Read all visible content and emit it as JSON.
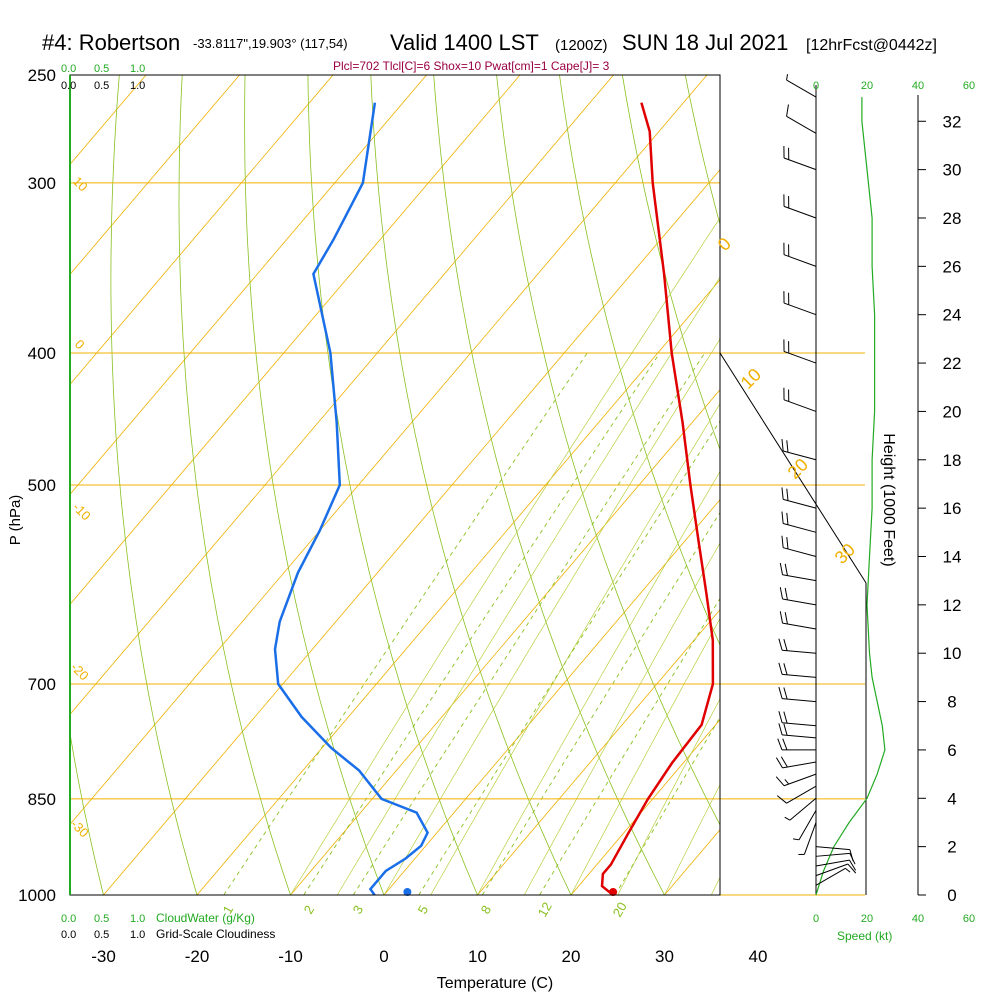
{
  "header": {
    "station": "#4: Robertson",
    "coords": "-33.8117\",19.903° (117,54)",
    "valid": "Valid 1400 LST",
    "zulu": "(1200Z)",
    "date": "SUN 18 Jul 2021",
    "forecast": "[12hrFcst@0442z]",
    "params": "Plcl=702 Tlcl[C]=6 Shox=10 Pwat[cm]=1 Cape[J]= 3"
  },
  "labels": {
    "y_left": "P (hPa)",
    "x_bottom": "Temperature (C)",
    "y_right": "Height (1000 Feet)",
    "speed": "Speed (kt)",
    "cloudwater": "CloudWater (g/Kg)",
    "cloudiness": "Grid-Scale Cloudiness"
  },
  "scale_marks": {
    "top_green": [
      "0.0",
      "0.5",
      "1.0"
    ],
    "top_black": [
      "0.0",
      "0.5",
      "1.0"
    ],
    "bottom_green": [
      "0.0",
      "0.5",
      "1.0"
    ],
    "bottom_black": [
      "0.0",
      "0.5",
      "1.0"
    ],
    "speed_top": [
      "0",
      "20",
      "40",
      "60"
    ],
    "speed_bottom": [
      "0",
      "20",
      "40",
      "60"
    ]
  },
  "isotherm_labels": [
    "10",
    "0",
    "-10",
    "-20",
    "-30"
  ],
  "mixing_ratio_labels": [
    "1",
    "2",
    "3",
    "5",
    "8",
    "12",
    "20"
  ],
  "theta_labels": [
    "0",
    "10",
    "20",
    "30"
  ],
  "colors": {
    "temperature": "#e00000",
    "dewpoint": "#1a6ee8",
    "isobar": "#f0b000",
    "isotherm": "#f0b000",
    "adiabat": "#8ac020",
    "mixing_ratio": "#8ac020",
    "wind": "#000000",
    "speed": "#22aa22",
    "params_text": "#990044",
    "scale_green": "#22aa22"
  },
  "chart_data": {
    "type": "skew-t",
    "title": "#4: Robertson",
    "xlabel": "Temperature (C)",
    "ylabel": "P (hPa)",
    "xlim": [
      -35,
      45
    ],
    "pressure_ticks": [
      250,
      300,
      400,
      500,
      700,
      850,
      1000
    ],
    "temp_ticks": [
      -30,
      -20,
      -10,
      0,
      10,
      20,
      30,
      40
    ],
    "height_ticks_kft": [
      0,
      2,
      4,
      6,
      8,
      10,
      12,
      14,
      16,
      18,
      20,
      22,
      24,
      26,
      28,
      30,
      32
    ],
    "temperature_profile": [
      {
        "p": 1000,
        "t": 24.5
      },
      {
        "p": 985,
        "t": 22.5
      },
      {
        "p": 965,
        "t": 21.5
      },
      {
        "p": 950,
        "t": 21.5
      },
      {
        "p": 900,
        "t": 20.5
      },
      {
        "p": 850,
        "t": 19.5
      },
      {
        "p": 800,
        "t": 18.8
      },
      {
        "p": 750,
        "t": 18.5
      },
      {
        "p": 700,
        "t": 16.0
      },
      {
        "p": 650,
        "t": 12.0
      },
      {
        "p": 600,
        "t": 7.0
      },
      {
        "p": 550,
        "t": 1.5
      },
      {
        "p": 500,
        "t": -4.5
      },
      {
        "p": 450,
        "t": -11.0
      },
      {
        "p": 400,
        "t": -18.5
      },
      {
        "p": 350,
        "t": -26.5
      },
      {
        "p": 300,
        "t": -36.0
      },
      {
        "p": 275,
        "t": -41.0
      },
      {
        "p": 262,
        "t": -44.5
      }
    ],
    "dewpoint_profile": [
      {
        "p": 1000,
        "td": -1.0
      },
      {
        "p": 990,
        "td": -2.0
      },
      {
        "p": 960,
        "td": -2.0
      },
      {
        "p": 940,
        "td": -1.0
      },
      {
        "p": 920,
        "td": -0.5
      },
      {
        "p": 900,
        "td": -1.0
      },
      {
        "p": 870,
        "td": -4.0
      },
      {
        "p": 850,
        "td": -9.0
      },
      {
        "p": 810,
        "td": -14.0
      },
      {
        "p": 780,
        "td": -19.0
      },
      {
        "p": 740,
        "td": -25.0
      },
      {
        "p": 700,
        "td": -30.5
      },
      {
        "p": 660,
        "td": -34.0
      },
      {
        "p": 630,
        "td": -36.0
      },
      {
        "p": 580,
        "td": -38.5
      },
      {
        "p": 540,
        "td": -40.0
      },
      {
        "p": 500,
        "td": -42.0
      },
      {
        "p": 450,
        "td": -48.0
      },
      {
        "p": 400,
        "td": -55.0
      },
      {
        "p": 350,
        "td": -64.0
      },
      {
        "p": 330,
        "td": -65.0
      },
      {
        "p": 300,
        "td": -67.0
      },
      {
        "p": 262,
        "td": -73.0
      }
    ],
    "surface_dewpoint_marker": {
      "p": 1000,
      "td": 2.5
    },
    "surface_temp_marker": {
      "p": 1000,
      "t": 24.5
    },
    "cloudwater_gkg": 0.0,
    "cloudiness": 0.0,
    "winds": [
      {
        "kft": 0.4,
        "spd": 5,
        "dir": 60
      },
      {
        "kft": 0.8,
        "spd": 10,
        "dir": 70
      },
      {
        "kft": 1.2,
        "spd": 10,
        "dir": 80
      },
      {
        "kft": 1.6,
        "spd": 10,
        "dir": 85
      },
      {
        "kft": 2.0,
        "spd": 10,
        "dir": 95
      },
      {
        "kft": 3.0,
        "spd": 5,
        "dir": 200
      },
      {
        "kft": 3.5,
        "spd": 5,
        "dir": 210
      },
      {
        "kft": 4.0,
        "spd": 8,
        "dir": 230
      },
      {
        "kft": 4.5,
        "spd": 10,
        "dir": 240
      },
      {
        "kft": 5.0,
        "spd": 15,
        "dir": 250
      },
      {
        "kft": 5.5,
        "spd": 20,
        "dir": 260
      },
      {
        "kft": 6.0,
        "spd": 22,
        "dir": 270
      },
      {
        "kft": 6.5,
        "spd": 22,
        "dir": 275
      },
      {
        "kft": 7.0,
        "spd": 20,
        "dir": 275
      },
      {
        "kft": 8.0,
        "spd": 20,
        "dir": 275
      },
      {
        "kft": 9.0,
        "spd": 20,
        "dir": 275
      },
      {
        "kft": 10.0,
        "spd": 20,
        "dir": 275
      },
      {
        "kft": 11.0,
        "spd": 20,
        "dir": 280
      },
      {
        "kft": 12.0,
        "spd": 20,
        "dir": 280
      },
      {
        "kft": 13.0,
        "spd": 20,
        "dir": 280
      },
      {
        "kft": 14.0,
        "spd": 20,
        "dir": 285
      },
      {
        "kft": 15.0,
        "spd": 20,
        "dir": 285
      },
      {
        "kft": 16.0,
        "spd": 20,
        "dir": 285
      },
      {
        "kft": 18.0,
        "spd": 20,
        "dir": 285
      },
      {
        "kft": 20.0,
        "spd": 20,
        "dir": 290
      },
      {
        "kft": 22.0,
        "spd": 20,
        "dir": 290
      },
      {
        "kft": 24.0,
        "spd": 20,
        "dir": 290
      },
      {
        "kft": 26.0,
        "spd": 20,
        "dir": 290
      },
      {
        "kft": 28.0,
        "spd": 20,
        "dir": 290
      },
      {
        "kft": 30.0,
        "spd": 20,
        "dir": 290
      },
      {
        "kft": 31.5,
        "spd": 10,
        "dir": 300
      },
      {
        "kft": 33.0,
        "spd": 5,
        "dir": 300
      }
    ],
    "speed_profile": [
      {
        "kft": 0,
        "spd": 0
      },
      {
        "kft": 1,
        "spd": 3
      },
      {
        "kft": 2,
        "spd": 7
      },
      {
        "kft": 3,
        "spd": 13
      },
      {
        "kft": 4,
        "spd": 20
      },
      {
        "kft": 5,
        "spd": 24
      },
      {
        "kft": 6,
        "spd": 27
      },
      {
        "kft": 7,
        "spd": 26
      },
      {
        "kft": 8,
        "spd": 24
      },
      {
        "kft": 9,
        "spd": 22
      },
      {
        "kft": 10,
        "spd": 21
      },
      {
        "kft": 12,
        "spd": 20
      },
      {
        "kft": 14,
        "spd": 21
      },
      {
        "kft": 16,
        "spd": 22
      },
      {
        "kft": 18,
        "spd": 22
      },
      {
        "kft": 20,
        "spd": 23
      },
      {
        "kft": 22,
        "spd": 23
      },
      {
        "kft": 24,
        "spd": 23
      },
      {
        "kft": 26,
        "spd": 22
      },
      {
        "kft": 28,
        "spd": 22
      },
      {
        "kft": 30,
        "spd": 20
      },
      {
        "kft": 32,
        "spd": 18
      },
      {
        "kft": 33,
        "spd": 18
      }
    ]
  }
}
